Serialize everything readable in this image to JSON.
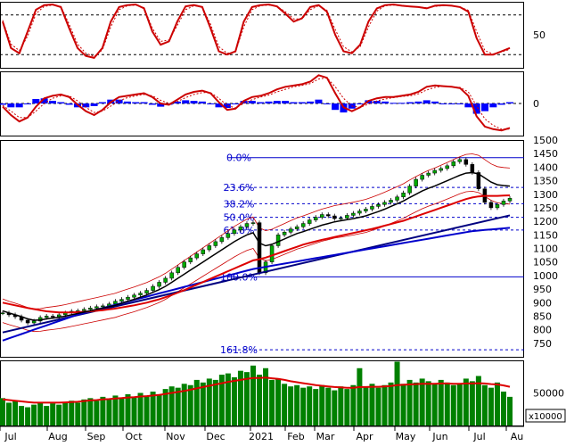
{
  "chart_data": [
    {
      "panel": "stochastic",
      "type": "line",
      "ylim": [
        0,
        100
      ],
      "yticks": [
        50
      ],
      "reference_lines": [
        80,
        20
      ],
      "series": [
        {
          "color": "#cc0000",
          "values": [
            70,
            30,
            22,
            55,
            88,
            95,
            96,
            92,
            60,
            30,
            18,
            15,
            30,
            70,
            92,
            95,
            96,
            90,
            55,
            35,
            40,
            70,
            93,
            95,
            92,
            60,
            25,
            20,
            25,
            70,
            92,
            95,
            96,
            93,
            82,
            70,
            75,
            92,
            95,
            85,
            50,
            25,
            22,
            35,
            70,
            90,
            95,
            96,
            94,
            93,
            92,
            90,
            94,
            95,
            94,
            92,
            85,
            45,
            20,
            20,
            25,
            30
          ]
        },
        {
          "color": "#cc0000",
          "dashed": true,
          "values": [
            72,
            36,
            26,
            48,
            82,
            93,
            95,
            93,
            66,
            36,
            22,
            17,
            27,
            62,
            88,
            94,
            95,
            91,
            60,
            40,
            42,
            64,
            88,
            94,
            92,
            66,
            32,
            22,
            24,
            62,
            88,
            94,
            95,
            93,
            85,
            74,
            74,
            88,
            94,
            87,
            58,
            32,
            24,
            32,
            62,
            86,
            94,
            95,
            94,
            93,
            92,
            91,
            93,
            94,
            94,
            92,
            87,
            55,
            26,
            21,
            24,
            28
          ]
        }
      ]
    },
    {
      "panel": "macd",
      "type": "line",
      "yticks": [
        0
      ],
      "series": [
        {
          "color": "#cc0000",
          "values": [
            -5,
            -18,
            -28,
            -22,
            -5,
            8,
            12,
            14,
            10,
            -2,
            -12,
            -18,
            -10,
            2,
            10,
            12,
            14,
            16,
            10,
            0,
            -2,
            6,
            14,
            18,
            20,
            16,
            2,
            -10,
            -8,
            4,
            10,
            12,
            16,
            22,
            26,
            28,
            30,
            34,
            44,
            40,
            16,
            -6,
            -12,
            -6,
            4,
            8,
            10,
            10,
            12,
            14,
            18,
            26,
            28,
            27,
            26,
            24,
            12,
            -20,
            -36,
            -40,
            -42,
            -38
          ]
        },
        {
          "color": "#cc0000",
          "dashed": true,
          "values": [
            -3,
            -12,
            -22,
            -22,
            -12,
            0,
            8,
            12,
            12,
            4,
            -6,
            -14,
            -12,
            -4,
            4,
            9,
            12,
            14,
            12,
            5,
            0,
            3,
            9,
            14,
            17,
            17,
            8,
            -3,
            -7,
            0,
            6,
            10,
            13,
            18,
            22,
            26,
            28,
            31,
            38,
            40,
            26,
            8,
            -4,
            -6,
            -1,
            4,
            7,
            9,
            11,
            12,
            15,
            21,
            25,
            27,
            26,
            25,
            18,
            -4,
            -24,
            -34,
            -40,
            -40
          ]
        },
        {
          "type": "histogram",
          "color": "#0000ff",
          "values": [
            -2,
            -6,
            -6,
            0,
            7,
            8,
            4,
            2,
            -2,
            -6,
            -6,
            -4,
            2,
            6,
            6,
            3,
            2,
            2,
            -2,
            -5,
            -2,
            3,
            5,
            4,
            3,
            -1,
            -6,
            -7,
            -1,
            4,
            4,
            2,
            3,
            4,
            4,
            2,
            2,
            3,
            6,
            0,
            -10,
            -14,
            -8,
            0,
            5,
            4,
            3,
            1,
            1,
            2,
            3,
            5,
            3,
            0,
            0,
            -1,
            -6,
            -16,
            -12,
            -6,
            -2,
            2
          ]
        }
      ]
    },
    {
      "panel": "price",
      "type": "candlestick",
      "ylim": [
        700,
        1500
      ],
      "yticks": [
        "1500",
        "1450",
        "1400",
        "1350",
        "1300",
        "1250",
        "1200",
        "1150",
        "1100",
        "1050",
        "1000",
        "950",
        "900",
        "850",
        "800",
        "750"
      ],
      "x_labels": [
        "Jul",
        "Aug",
        "Sep",
        "Oct",
        "Nov",
        "Dec",
        "2021",
        "Feb",
        "Mar",
        "Apr",
        "May",
        "Jun",
        "Jul",
        "Au"
      ],
      "close": [
        862,
        855,
        848,
        835,
        825,
        832,
        845,
        850,
        848,
        855,
        862,
        868,
        870,
        875,
        880,
        885,
        888,
        895,
        905,
        912,
        920,
        928,
        935,
        945,
        960,
        975,
        990,
        1010,
        1030,
        1050,
        1065,
        1080,
        1095,
        1110,
        1125,
        1140,
        1155,
        1168,
        1180,
        1192,
        1195,
        1010,
        1050,
        1110,
        1150,
        1160,
        1172,
        1180,
        1192,
        1205,
        1215,
        1225,
        1220,
        1210,
        1212,
        1222,
        1230,
        1238,
        1245,
        1255,
        1262,
        1270,
        1278,
        1290,
        1305,
        1330,
        1355,
        1370,
        1378,
        1388,
        1395,
        1405,
        1420,
        1428,
        1410,
        1380,
        1320,
        1270,
        1250,
        1262,
        1275,
        1285
      ],
      "sma20": [
        870,
        862,
        855,
        848,
        840,
        835,
        836,
        840,
        843,
        846,
        850,
        855,
        860,
        865,
        870,
        875,
        880,
        885,
        890,
        898,
        905,
        912,
        920,
        928,
        938,
        948,
        960,
        975,
        990,
        1005,
        1020,
        1035,
        1050,
        1065,
        1080,
        1095,
        1110,
        1125,
        1138,
        1150,
        1158,
        1120,
        1110,
        1115,
        1125,
        1135,
        1145,
        1155,
        1162,
        1170,
        1178,
        1186,
        1192,
        1198,
        1202,
        1206,
        1210,
        1215,
        1220,
        1228,
        1236,
        1245,
        1255,
        1265,
        1275,
        1288,
        1300,
        1312,
        1322,
        1330,
        1340,
        1350,
        1360,
        1370,
        1378,
        1380,
        1375,
        1360,
        1345,
        1335,
        1332,
        1330
      ],
      "sma50": [
        900,
        895,
        890,
        885,
        880,
        876,
        872,
        868,
        866,
        864,
        864,
        864,
        865,
        866,
        868,
        870,
        872,
        875,
        878,
        882,
        886,
        890,
        895,
        900,
        906,
        912,
        920,
        928,
        937,
        946,
        956,
        966,
        976,
        986,
        996,
        1006,
        1016,
        1026,
        1036,
        1046,
        1056,
        1060,
        1066,
        1074,
        1082,
        1090,
        1098,
        1106,
        1114,
        1120,
        1126,
        1132,
        1137,
        1142,
        1147,
        1152,
        1157,
        1162,
        1167,
        1172,
        1178,
        1184,
        1190,
        1196,
        1202,
        1210,
        1218,
        1226,
        1234,
        1242,
        1250,
        1258,
        1266,
        1274,
        1282,
        1288,
        1292,
        1294,
        1294,
        1294,
        1295,
        1296
      ],
      "sma200": [
        760,
        768,
        776,
        784,
        792,
        800,
        808,
        816,
        824,
        832,
        840,
        848,
        856,
        862,
        868,
        874,
        880,
        886,
        892,
        898,
        904,
        910,
        916,
        922,
        928,
        934,
        940,
        946,
        952,
        958,
        964,
        970,
        976,
        982,
        988,
        994,
        1000,
        1006,
        1012,
        1018,
        1024,
        1028,
        1032,
        1036,
        1040,
        1044,
        1048,
        1052,
        1056,
        1060,
        1064,
        1068,
        1072,
        1076,
        1080,
        1084,
        1088,
        1092,
        1096,
        1100,
        1104,
        1108,
        1112,
        1116,
        1120,
        1124,
        1128,
        1132,
        1136,
        1140,
        1144,
        1148,
        1152,
        1156,
        1160,
        1164,
        1166,
        1168,
        1170,
        1172,
        1174,
        1176
      ],
      "trendline": {
        "from": [
          0,
          790
        ],
        "to": [
          81,
          1222
        ]
      },
      "fibonacci": [
        {
          "label": "0.0%",
          "value": 1435,
          "solid": true
        },
        {
          "label": "23.6%",
          "value": 1325
        },
        {
          "label": "38.2%",
          "value": 1265
        },
        {
          "label": "50.0%",
          "value": 1215
        },
        {
          "label": "61.8%",
          "value": 1168
        },
        {
          "label": "100.0%",
          "value": 995,
          "solid": true
        },
        {
          "label": "161.8%",
          "value": 726
        }
      ]
    },
    {
      "panel": "volume",
      "type": "bar",
      "ylim": [
        0,
        100000
      ],
      "yticks": [
        "50000"
      ],
      "unit_label": "x10000",
      "values": [
        42000,
        35000,
        38000,
        30000,
        28000,
        32000,
        36000,
        30000,
        34000,
        32000,
        36000,
        38000,
        35000,
        40000,
        42000,
        38000,
        44000,
        40000,
        46000,
        42000,
        48000,
        44000,
        50000,
        46000,
        52000,
        48000,
        56000,
        60000,
        58000,
        64000,
        62000,
        70000,
        66000,
        72000,
        70000,
        78000,
        80000,
        74000,
        84000,
        82000,
        92000,
        78000,
        88000,
        70000,
        72000,
        64000,
        60000,
        62000,
        58000,
        60000,
        56000,
        62000,
        58000,
        54000,
        60000,
        56000,
        62000,
        88000,
        60000,
        64000,
        58000,
        62000,
        66000,
        98000,
        64000,
        70000,
        66000,
        72000,
        68000,
        64000,
        70000,
        66000,
        62000,
        64000,
        72000,
        68000,
        76000,
        62000,
        58000,
        66000,
        52000,
        44000
      ],
      "ma": [
        40000,
        39000,
        38000,
        37000,
        36000,
        35000,
        35000,
        35000,
        35000,
        35000,
        35500,
        36000,
        36500,
        37500,
        38500,
        39000,
        40000,
        40500,
        41500,
        42000,
        43000,
        43500,
        44500,
        45000,
        46000,
        47000,
        48500,
        50000,
        51500,
        53000,
        55000,
        57000,
        59000,
        61000,
        63000,
        65000,
        67000,
        68500,
        70000,
        71500,
        73000,
        73000,
        73500,
        72500,
        71500,
        70000,
        68000,
        66500,
        65000,
        63500,
        62000,
        61000,
        60000,
        59000,
        58500,
        58000,
        58000,
        59000,
        59000,
        59500,
        59500,
        60000,
        60500,
        62000,
        62500,
        63000,
        63500,
        64000,
        64000,
        64000,
        64500,
        64500,
        64000,
        64000,
        64500,
        64500,
        65000,
        64500,
        63500,
        63000,
        61500,
        59500
      ]
    }
  ]
}
